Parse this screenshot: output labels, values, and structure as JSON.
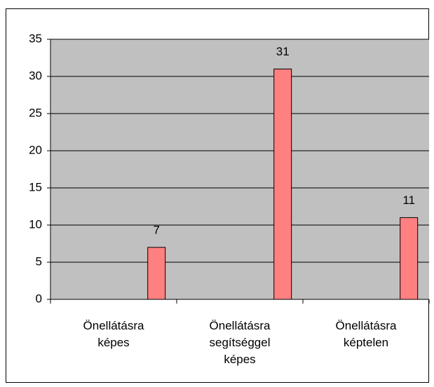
{
  "chart_data": {
    "type": "bar",
    "categories": [
      "Önellátásra képes",
      "Önellátásra segítséggel képes",
      "Önellátásra képtelen"
    ],
    "values": [
      7,
      31,
      11
    ],
    "color": "#ff8080",
    "ylim": [
      0,
      35
    ],
    "yticks": [
      0,
      5,
      10,
      15,
      20,
      25,
      30,
      35
    ],
    "grid": true
  }
}
